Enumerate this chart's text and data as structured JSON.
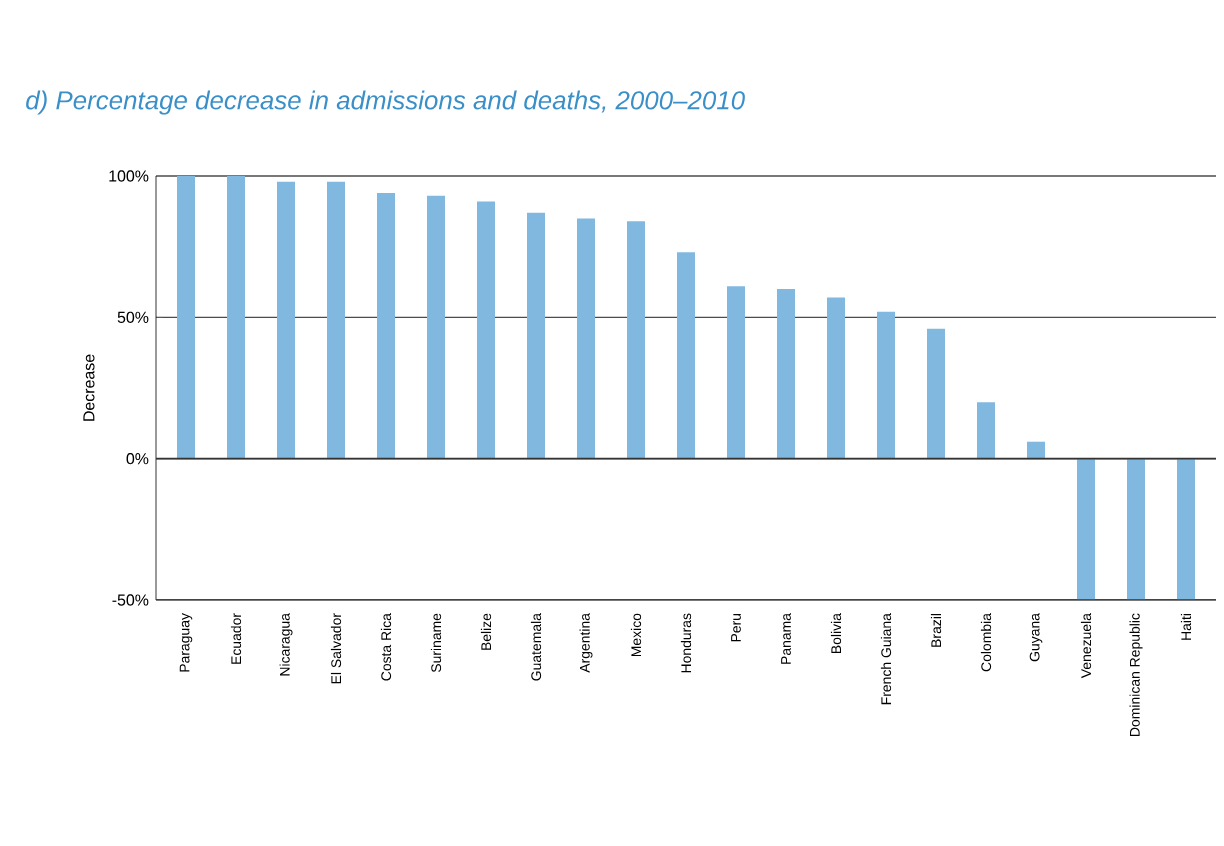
{
  "chart_data": {
    "type": "bar",
    "title": "d) Percentage decrease in admissions and deaths, 2000–2010",
    "ylabel": "Decrease",
    "categories": [
      "Paraguay",
      "Ecuador",
      "Nicaragua",
      "El Salvador",
      "Costa Rica",
      "Suriname",
      "Belize",
      "Guatemala",
      "Argentina",
      "Mexico",
      "Honduras",
      "Peru",
      "Panama",
      "Bolivia",
      "French Guiana",
      "Brazil",
      "Colombia",
      "Guyana",
      "Venezuela",
      "Dominican Republic",
      "Haiti"
    ],
    "values": [
      100,
      100,
      98,
      98,
      94,
      93,
      91,
      87,
      85,
      84,
      73,
      61,
      60,
      57,
      52,
      46,
      20,
      6,
      -50,
      -50,
      -50
    ],
    "color": "#80b8df",
    "ylim": [
      -50,
      100
    ],
    "yticks": [
      {
        "value": -50,
        "label": "-50%"
      },
      {
        "value": 0,
        "label": "0%"
      },
      {
        "value": 50,
        "label": "50%"
      },
      {
        "value": 100,
        "label": "100%"
      }
    ],
    "grid": "y"
  }
}
